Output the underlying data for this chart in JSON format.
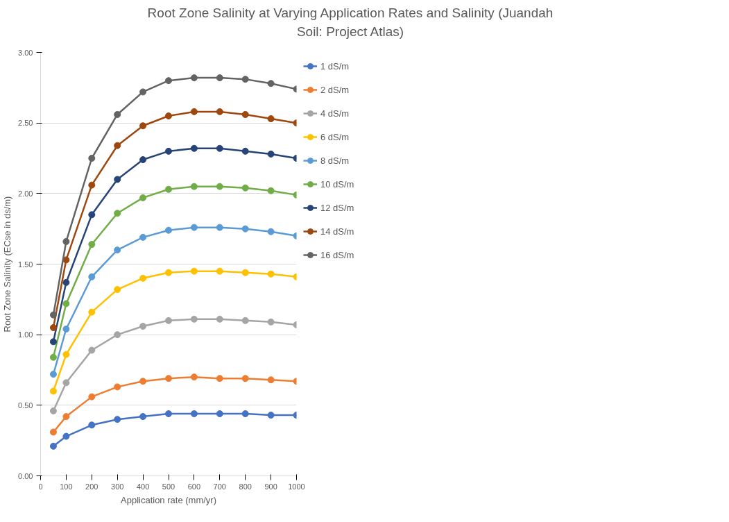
{
  "chart_data": {
    "type": "line",
    "title": "Root Zone Salinity at Varying Application Rates and Salinity (Juandah Soil: Project Atlas)",
    "xlabel": "Application rate (mm/yr)",
    "ylabel": "Root Zone Salinity (ECse in ds/m)",
    "x": [
      50,
      100,
      200,
      300,
      400,
      500,
      600,
      700,
      800,
      900,
      1000
    ],
    "xlim": [
      0,
      1000
    ],
    "xticks": [
      0,
      100,
      200,
      300,
      400,
      500,
      600,
      700,
      800,
      900,
      1000
    ],
    "ylim": [
      0,
      3
    ],
    "yticks": [
      {
        "value": 0,
        "label": "0.00"
      },
      {
        "value": 0.5,
        "label": "0.50"
      },
      {
        "value": 1,
        "label": "1.00"
      },
      {
        "value": 1.5,
        "label": "1.50"
      },
      {
        "value": 2,
        "label": "2.00"
      },
      {
        "value": 2.5,
        "label": "2.50"
      },
      {
        "value": 3,
        "label": "3.00"
      }
    ],
    "grid": "y",
    "legend": "right",
    "marker": "circle",
    "line_style": "solid",
    "series": [
      {
        "name": "1 dS/m",
        "color": "#4472c4",
        "values": [
          0.21,
          0.28,
          0.36,
          0.4,
          0.42,
          0.44,
          0.44,
          0.44,
          0.44,
          0.43,
          0.43
        ]
      },
      {
        "name": "2 dS/m",
        "color": "#ed7d31",
        "values": [
          0.31,
          0.42,
          0.56,
          0.63,
          0.67,
          0.69,
          0.7,
          0.69,
          0.69,
          0.68,
          0.67
        ]
      },
      {
        "name": "4 dS/m",
        "color": "#a5a5a5",
        "values": [
          0.46,
          0.66,
          0.89,
          1.0,
          1.06,
          1.1,
          1.11,
          1.11,
          1.1,
          1.09,
          1.07
        ]
      },
      {
        "name": "6 dS/m",
        "color": "#ffc000",
        "values": [
          0.6,
          0.86,
          1.16,
          1.32,
          1.4,
          1.44,
          1.45,
          1.45,
          1.44,
          1.43,
          1.41
        ]
      },
      {
        "name": "8 dS/m",
        "color": "#5b9bd5",
        "values": [
          0.72,
          1.04,
          1.41,
          1.6,
          1.69,
          1.74,
          1.76,
          1.76,
          1.75,
          1.73,
          1.7
        ]
      },
      {
        "name": "10 dS/m",
        "color": "#70ad47",
        "values": [
          0.84,
          1.22,
          1.64,
          1.86,
          1.97,
          2.03,
          2.05,
          2.05,
          2.04,
          2.02,
          1.99
        ]
      },
      {
        "name": "12 dS/m",
        "color": "#264478",
        "values": [
          0.95,
          1.37,
          1.85,
          2.1,
          2.24,
          2.3,
          2.32,
          2.32,
          2.3,
          2.28,
          2.25
        ]
      },
      {
        "name": "14 dS/m",
        "color": "#9e480e",
        "values": [
          1.05,
          1.53,
          2.06,
          2.34,
          2.48,
          2.55,
          2.58,
          2.58,
          2.56,
          2.53,
          2.5
        ]
      },
      {
        "name": "16 dS/m",
        "color": "#636363",
        "values": [
          1.14,
          1.66,
          2.25,
          2.56,
          2.72,
          2.8,
          2.82,
          2.82,
          2.81,
          2.78,
          2.74
        ]
      }
    ]
  }
}
